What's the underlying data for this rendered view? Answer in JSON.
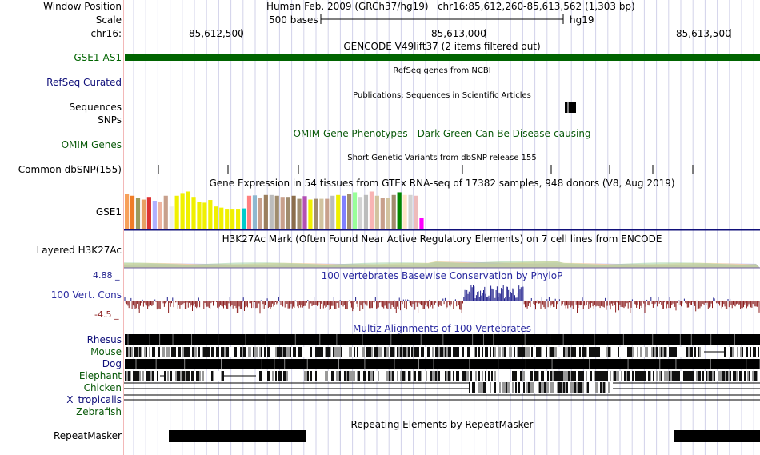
{
  "header": {
    "window_position_label": "Window Position",
    "window_position_value": "Human Feb. 2009 (GRCh37/hg19)   chr16:85,612,260-85,613,562 (1,303 bp)",
    "scale_label": "Scale",
    "scale_value": "500 bases",
    "scale_assembly": "hg19",
    "chrom_label": "chr16:",
    "ticks": [
      "85,612,500",
      "85,613,000",
      "85,613,500"
    ]
  },
  "tracks": {
    "gencode_title": "GENCODE V49lift37 (2 items filtered out)",
    "gencode_gene": "GSE1-AS1",
    "refseq_title": "RefSeq genes from NCBI",
    "refseq_label": "RefSeq Curated",
    "pubs_title": "Publications: Sequences in Scientific Articles",
    "pubs_label": "Sequences",
    "snps_label": "SNPs",
    "omim_title": "OMIM Gene Phenotypes - Dark Green Can Be Disease-causing",
    "omim_label": "OMIM Genes",
    "dbsnp_title": "Short Genetic Variants from dbSNP release 155",
    "dbsnp_label": "Common dbSNP(155)",
    "gtex_title": "Gene Expression in 54 tissues from GTEx RNA-seq of 17382 samples, 948 donors (V8, Aug 2019)",
    "gtex_label": "GSE1",
    "h3k_title": "H3K27Ac Mark (Often Found Near Active Regulatory Elements) on 7 cell lines from ENCODE",
    "h3k_label": "Layered H3K27Ac",
    "cons_title": "100 vertebrates Basewise Conservation by PhyloP",
    "cons_label": "100 Vert. Cons",
    "cons_max": "4.88 _",
    "cons_min": "-4.5 _",
    "multiz_title": "Multiz Alignments of 100 Vertebrates",
    "species": [
      "Rhesus",
      "Mouse",
      "Dog",
      "Elephant",
      "Chicken",
      "X_tropicalis",
      "Zebrafish"
    ],
    "rmsk_title": "Repeating Elements by RepeatMasker",
    "rmsk_label": "RepeatMasker"
  },
  "colors": {
    "gencode": "#006400",
    "label_blue": "#10107a",
    "omim_green": "#0a6e0a",
    "cons_pos": "#1e1e8c",
    "cons_neg": "#8c1e1e",
    "grid": "#d2d2ea"
  },
  "gtex_bars": [
    {
      "v": 0.92,
      "c": "#f7a05a"
    },
    {
      "v": 0.88,
      "c": "#f07d28"
    },
    {
      "v": 0.82,
      "c": "#9b9b5e"
    },
    {
      "v": 0.78,
      "c": "#e8a064"
    },
    {
      "v": 0.85,
      "c": "#dd3333"
    },
    {
      "v": 0.75,
      "c": "#b0b0ff"
    },
    {
      "v": 0.73,
      "c": "#eeb4a0"
    },
    {
      "v": 0.88,
      "c": "#c8a08c"
    },
    {
      "v": 0.6,
      "c": "#eeeeee"
    },
    {
      "v": 0.88,
      "c": "#f0f000"
    },
    {
      "v": 0.95,
      "c": "#f0f000"
    },
    {
      "v": 0.99,
      "c": "#f0f000"
    },
    {
      "v": 0.85,
      "c": "#f0f000"
    },
    {
      "v": 0.72,
      "c": "#f0f000"
    },
    {
      "v": 0.7,
      "c": "#f0f000"
    },
    {
      "v": 0.77,
      "c": "#f0f000"
    },
    {
      "v": 0.6,
      "c": "#f0f000"
    },
    {
      "v": 0.57,
      "c": "#f0f000"
    },
    {
      "v": 0.54,
      "c": "#f0f000"
    },
    {
      "v": 0.54,
      "c": "#f0f000"
    },
    {
      "v": 0.54,
      "c": "#f0f000"
    },
    {
      "v": 0.55,
      "c": "#00cccc"
    },
    {
      "v": 0.88,
      "c": "#ff8080"
    },
    {
      "v": 0.89,
      "c": "#8fb8d0"
    },
    {
      "v": 0.82,
      "c": "#c8a08c"
    },
    {
      "v": 0.9,
      "c": "#9b7f5e"
    },
    {
      "v": 0.9,
      "c": "#bcbcbc"
    },
    {
      "v": 0.88,
      "c": "#a08c6e"
    },
    {
      "v": 0.85,
      "c": "#c8a08c"
    },
    {
      "v": 0.85,
      "c": "#a08c6e"
    },
    {
      "v": 0.88,
      "c": "#8c6e4c"
    },
    {
      "v": 0.8,
      "c": "#a08c6e"
    },
    {
      "v": 0.87,
      "c": "#b450b4"
    },
    {
      "v": 0.78,
      "c": "#f0f000"
    },
    {
      "v": 0.8,
      "c": "#a08c6e"
    },
    {
      "v": 0.8,
      "c": "#d2c3a0"
    },
    {
      "v": 0.8,
      "c": "#c8a08c"
    },
    {
      "v": 0.88,
      "c": "#bcbcbc"
    },
    {
      "v": 0.9,
      "c": "#f0f000"
    },
    {
      "v": 0.88,
      "c": "#8080ff"
    },
    {
      "v": 0.92,
      "c": "#a08c6e"
    },
    {
      "v": 0.97,
      "c": "#99ff99"
    },
    {
      "v": 0.85,
      "c": "#d2d2d2"
    },
    {
      "v": 0.9,
      "c": "#bcbcbc"
    },
    {
      "v": 0.99,
      "c": "#f8b4b4"
    },
    {
      "v": 0.88,
      "c": "#d2c3a0"
    },
    {
      "v": 0.82,
      "c": "#c8a08c"
    },
    {
      "v": 0.82,
      "c": "#d2c3a0"
    },
    {
      "v": 0.9,
      "c": "#a08c6e"
    },
    {
      "v": 0.97,
      "c": "#008800"
    },
    {
      "v": 0.9,
      "c": "#ffe6c8"
    },
    {
      "v": 0.9,
      "c": "#d2d2d2"
    },
    {
      "v": 0.88,
      "c": "#eebbbb"
    },
    {
      "v": 0.3,
      "c": "#ff00ff"
    }
  ]
}
